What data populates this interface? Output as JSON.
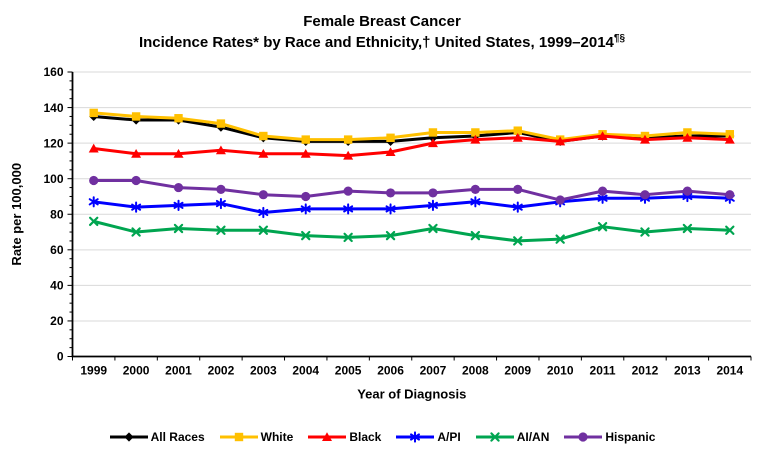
{
  "title": {
    "line1": "Female Breast Cancer",
    "line2_main": "Incidence Rates* by Race and Ethnicity,† United States, 1999–2014",
    "line2_sup": "¶§"
  },
  "chart_data": {
    "type": "line",
    "title": "Female Breast Cancer Incidence Rates by Race and Ethnicity, United States, 1999-2014",
    "xlabel": "Year of Diagnosis",
    "ylabel": "Rate per 100,000",
    "ylim": [
      0,
      160
    ],
    "ytick_step": 20,
    "ytick_labels": [
      "0",
      "20",
      "40",
      "60",
      "80",
      "100",
      "120",
      "140",
      "160"
    ],
    "grid": true,
    "gridline_color": "#d9d9d9",
    "legend_position": "bottom",
    "categories": [
      "1999",
      "2000",
      "2001",
      "2002",
      "2003",
      "2004",
      "2005",
      "2006",
      "2007",
      "2008",
      "2009",
      "2010",
      "2011",
      "2012",
      "2013",
      "2014"
    ],
    "series": [
      {
        "name": "All Races",
        "color": "#000000",
        "marker": "diamond",
        "values": [
          135,
          133,
          133,
          129,
          123,
          121,
          121,
          121,
          123,
          124,
          126,
          121,
          124,
          123,
          124,
          124
        ]
      },
      {
        "name": "White",
        "color": "#FFC000",
        "marker": "square",
        "values": [
          137,
          135,
          134,
          131,
          124,
          122,
          122,
          123,
          126,
          126,
          127,
          122,
          125,
          124,
          126,
          125
        ]
      },
      {
        "name": "Black",
        "color": "#FF0000",
        "marker": "triangle",
        "values": [
          117,
          114,
          114,
          116,
          114,
          114,
          113,
          115,
          120,
          122,
          123,
          121,
          124,
          122,
          123,
          122
        ]
      },
      {
        "name": "A/PI",
        "color": "#0000FF",
        "marker": "asterisk",
        "values": [
          87,
          84,
          85,
          86,
          81,
          83,
          83,
          83,
          85,
          87,
          84,
          87,
          89,
          89,
          90,
          89
        ]
      },
      {
        "name": "AI/AN",
        "color": "#00A550",
        "marker": "x",
        "values": [
          76,
          70,
          72,
          71,
          71,
          68,
          67,
          68,
          72,
          68,
          65,
          66,
          73,
          70,
          72,
          71
        ]
      },
      {
        "name": "Hispanic",
        "color": "#7030A0",
        "marker": "circle",
        "values": [
          99,
          99,
          95,
          94,
          91,
          90,
          93,
          92,
          92,
          94,
          94,
          88,
          93,
          91,
          93,
          91
        ]
      }
    ]
  }
}
